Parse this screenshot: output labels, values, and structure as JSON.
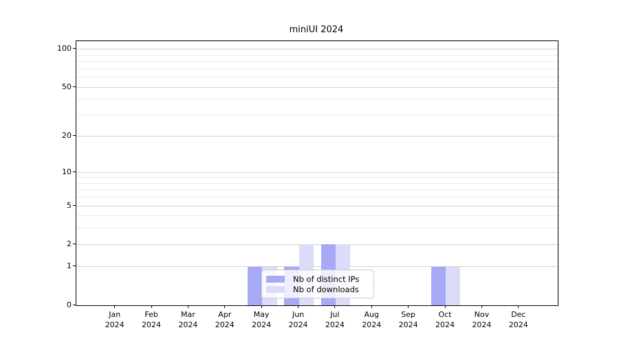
{
  "title": "miniUI 2024",
  "chart_data": {
    "type": "bar",
    "title": "miniUI 2024",
    "x_months": [
      "Jan",
      "Feb",
      "Mar",
      "Apr",
      "May",
      "Jun",
      "Jul",
      "Aug",
      "Sep",
      "Oct",
      "Nov",
      "Dec"
    ],
    "x_year": "2024",
    "series": [
      {
        "name": "Nb of distinct IPs",
        "color": "#a8a9f4",
        "values": [
          0,
          0,
          0,
          0,
          1,
          1,
          2,
          0,
          0,
          1,
          0,
          0
        ]
      },
      {
        "name": "Nb of downloads",
        "color": "#dbdcf8",
        "values": [
          0,
          0,
          0,
          0,
          1,
          2,
          2,
          0,
          0,
          1,
          0,
          0
        ]
      }
    ],
    "xlabel": "",
    "ylabel": "",
    "yscale": "log1p",
    "ylim": [
      0,
      116
    ],
    "ytick_labels": [
      0,
      1,
      2,
      5,
      10,
      20,
      50,
      100
    ],
    "grid_major_values": [
      1,
      2,
      5,
      10,
      20,
      50,
      100
    ],
    "grid_minor_values": [
      3,
      4,
      6,
      7,
      8,
      9,
      30,
      40,
      60,
      70,
      80,
      90
    ],
    "grid": "horizontal major+minor",
    "legend_position": "inside plot, lower center-left"
  },
  "legend": {
    "items": [
      {
        "label": "Nb of distinct IPs",
        "color": "#a8a9f4"
      },
      {
        "label": "Nb of downloads",
        "color": "#dbdcf8"
      }
    ]
  },
  "colors": {
    "background": "#ffffff",
    "bar_ips": "#a8a9f4",
    "bar_downloads": "#dbdcf8",
    "grid_major": "#d2d2d2",
    "grid_minor": "#eaeaea",
    "axis": "#000000",
    "legend_border": "#cccccc"
  }
}
